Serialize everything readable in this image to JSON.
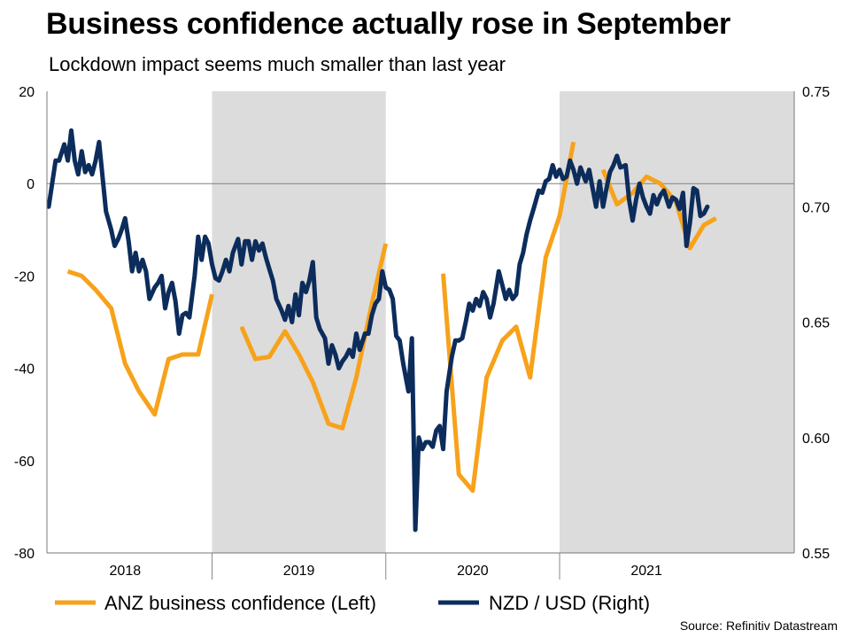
{
  "header": {
    "title": "Business confidence actually rose in September",
    "subtitle": "Lockdown impact seems much smaller than last year"
  },
  "source": "Source: Refinitiv Datastream",
  "colors": {
    "anz": "#F7A21B",
    "nzd": "#0C2C5C",
    "shade": "#DCDCDC",
    "zero_line": "#808080"
  },
  "chart_data": {
    "type": "line",
    "title": "Business confidence actually rose in September",
    "subtitle": "Lockdown impact seems much smaller than last year",
    "x_range": [
      2017.55,
      2021.85
    ],
    "x_tick_labels": [
      {
        "label": "2018",
        "at": 2018.0
      },
      {
        "label": "2019",
        "at": 2019.0
      },
      {
        "label": "2020",
        "at": 2020.0
      },
      {
        "label": "2021",
        "at": 2021.0
      }
    ],
    "shaded_years": [
      [
        2018.5,
        2019.5
      ],
      [
        2020.5,
        2021.85
      ]
    ],
    "year_separators": [
      2018.5,
      2019.5,
      2020.5
    ],
    "y_left": {
      "range": [
        -80,
        20
      ],
      "ticks": [
        20,
        0,
        -20,
        -40,
        -60,
        -80
      ],
      "tick_labels": [
        "20",
        "0",
        "-20",
        "-40",
        "-60",
        "-80"
      ]
    },
    "y_right": {
      "range": [
        0.55,
        0.75
      ],
      "ticks": [
        0.75,
        0.7,
        0.65,
        0.6,
        0.55
      ],
      "tick_labels": [
        "0.75",
        "0.70",
        "0.65",
        "0.60",
        "0.55"
      ]
    },
    "series": [
      {
        "name": "ANZ business confidence (Left)",
        "axis": "left",
        "segments": [
          [
            [
              2017.67,
              -19
            ],
            [
              2017.75,
              -20
            ],
            [
              2017.83,
              -23
            ],
            [
              2017.92,
              -27
            ],
            [
              2018.0,
              -39
            ],
            [
              2018.08,
              -45
            ],
            [
              2018.17,
              -50
            ],
            [
              2018.25,
              -38
            ],
            [
              2018.33,
              -37
            ],
            [
              2018.42,
              -37
            ],
            [
              2018.5,
              -24
            ]
          ],
          [
            [
              2018.67,
              -31
            ],
            [
              2018.75,
              -38
            ],
            [
              2018.83,
              -37.5
            ],
            [
              2018.92,
              -32
            ],
            [
              2019.0,
              -37
            ],
            [
              2019.08,
              -43
            ],
            [
              2019.17,
              -52
            ],
            [
              2019.25,
              -53
            ],
            [
              2019.33,
              -42
            ],
            [
              2019.42,
              -26
            ],
            [
              2019.5,
              -13
            ]
          ],
          [
            [
              2019.83,
              -19.5
            ],
            [
              2019.92,
              -63
            ],
            [
              2020.0,
              -66.5
            ],
            [
              2020.08,
              -42
            ],
            [
              2020.17,
              -34
            ],
            [
              2020.25,
              -31
            ],
            [
              2020.33,
              -42
            ],
            [
              2020.42,
              -16
            ],
            [
              2020.5,
              -7
            ],
            [
              2020.58,
              9
            ]
          ],
          [
            [
              2020.75,
              3
            ],
            [
              2020.83,
              -4.5
            ],
            [
              2020.92,
              -2
            ],
            [
              2021.0,
              1.5
            ],
            [
              2021.08,
              0
            ],
            [
              2021.17,
              -4
            ],
            [
              2021.25,
              -14
            ],
            [
              2021.33,
              -9
            ],
            [
              2021.4,
              -7.5
            ]
          ]
        ]
      },
      {
        "name": "NZD / USD (Right)",
        "axis": "right",
        "points": [
          [
            2017.56,
            0.7
          ],
          [
            2017.58,
            0.71
          ],
          [
            2017.6,
            0.72
          ],
          [
            2017.62,
            0.72
          ],
          [
            2017.65,
            0.727
          ],
          [
            2017.67,
            0.72
          ],
          [
            2017.69,
            0.733
          ],
          [
            2017.71,
            0.72
          ],
          [
            2017.73,
            0.714
          ],
          [
            2017.75,
            0.724
          ],
          [
            2017.77,
            0.715
          ],
          [
            2017.79,
            0.718
          ],
          [
            2017.81,
            0.714
          ],
          [
            2017.83,
            0.72
          ],
          [
            2017.85,
            0.728
          ],
          [
            2017.87,
            0.713
          ],
          [
            2017.89,
            0.698
          ],
          [
            2017.92,
            0.69
          ],
          [
            2017.94,
            0.683
          ],
          [
            2017.96,
            0.686
          ],
          [
            2017.98,
            0.69
          ],
          [
            2018.0,
            0.695
          ],
          [
            2018.02,
            0.685
          ],
          [
            2018.04,
            0.672
          ],
          [
            2018.06,
            0.68
          ],
          [
            2018.08,
            0.672
          ],
          [
            2018.1,
            0.677
          ],
          [
            2018.12,
            0.672
          ],
          [
            2018.14,
            0.66
          ],
          [
            2018.17,
            0.665
          ],
          [
            2018.19,
            0.667
          ],
          [
            2018.21,
            0.67
          ],
          [
            2018.23,
            0.656
          ],
          [
            2018.25,
            0.663
          ],
          [
            2018.27,
            0.667
          ],
          [
            2018.29,
            0.659
          ],
          [
            2018.31,
            0.645
          ],
          [
            2018.33,
            0.653
          ],
          [
            2018.35,
            0.654
          ],
          [
            2018.37,
            0.652
          ],
          [
            2018.4,
            0.67
          ],
          [
            2018.42,
            0.687
          ],
          [
            2018.44,
            0.677
          ],
          [
            2018.46,
            0.687
          ],
          [
            2018.48,
            0.684
          ],
          [
            2018.5,
            0.675
          ],
          [
            2018.52,
            0.669
          ],
          [
            2018.54,
            0.668
          ],
          [
            2018.56,
            0.672
          ],
          [
            2018.58,
            0.677
          ],
          [
            2018.6,
            0.672
          ],
          [
            2018.62,
            0.68
          ],
          [
            2018.65,
            0.686
          ],
          [
            2018.67,
            0.675
          ],
          [
            2018.69,
            0.685
          ],
          [
            2018.71,
            0.685
          ],
          [
            2018.73,
            0.677
          ],
          [
            2018.75,
            0.685
          ],
          [
            2018.77,
            0.681
          ],
          [
            2018.79,
            0.684
          ],
          [
            2018.81,
            0.678
          ],
          [
            2018.83,
            0.673
          ],
          [
            2018.85,
            0.668
          ],
          [
            2018.87,
            0.66
          ],
          [
            2018.9,
            0.655
          ],
          [
            2018.92,
            0.651
          ],
          [
            2018.94,
            0.657
          ],
          [
            2018.96,
            0.65
          ],
          [
            2018.98,
            0.662
          ],
          [
            2019.0,
            0.653
          ],
          [
            2019.02,
            0.667
          ],
          [
            2019.04,
            0.663
          ],
          [
            2019.06,
            0.668
          ],
          [
            2019.08,
            0.676
          ],
          [
            2019.1,
            0.652
          ],
          [
            2019.12,
            0.647
          ],
          [
            2019.15,
            0.643
          ],
          [
            2019.17,
            0.632
          ],
          [
            2019.19,
            0.64
          ],
          [
            2019.21,
            0.636
          ],
          [
            2019.23,
            0.63
          ],
          [
            2019.25,
            0.633
          ],
          [
            2019.27,
            0.635
          ],
          [
            2019.29,
            0.638
          ],
          [
            2019.31,
            0.635
          ],
          [
            2019.33,
            0.645
          ],
          [
            2019.35,
            0.638
          ],
          [
            2019.38,
            0.645
          ],
          [
            2019.4,
            0.645
          ],
          [
            2019.42,
            0.653
          ],
          [
            2019.44,
            0.658
          ],
          [
            2019.46,
            0.66
          ],
          [
            2019.48,
            0.672
          ],
          [
            2019.5,
            0.665
          ],
          [
            2019.52,
            0.664
          ],
          [
            2019.54,
            0.66
          ],
          [
            2019.56,
            0.644
          ],
          [
            2019.58,
            0.642
          ],
          [
            2019.6,
            0.632
          ],
          [
            2019.63,
            0.62
          ],
          [
            2019.65,
            0.643
          ],
          [
            2019.67,
            0.56
          ],
          [
            2019.69,
            0.6
          ],
          [
            2019.71,
            0.595
          ],
          [
            2019.73,
            0.598
          ],
          [
            2019.75,
            0.598
          ],
          [
            2019.77,
            0.596
          ],
          [
            2019.79,
            0.603
          ],
          [
            2019.81,
            0.605
          ],
          [
            2019.83,
            0.595
          ],
          [
            2019.85,
            0.62
          ],
          [
            2019.88,
            0.635
          ],
          [
            2019.9,
            0.642
          ],
          [
            2019.92,
            0.642
          ],
          [
            2019.94,
            0.643
          ],
          [
            2019.96,
            0.65
          ],
          [
            2019.98,
            0.658
          ],
          [
            2020.0,
            0.655
          ],
          [
            2020.02,
            0.66
          ],
          [
            2020.04,
            0.657
          ],
          [
            2020.06,
            0.663
          ],
          [
            2020.08,
            0.66
          ],
          [
            2020.1,
            0.652
          ],
          [
            2020.12,
            0.658
          ],
          [
            2020.15,
            0.672
          ],
          [
            2020.17,
            0.666
          ],
          [
            2020.19,
            0.66
          ],
          [
            2020.21,
            0.664
          ],
          [
            2020.23,
            0.66
          ],
          [
            2020.25,
            0.662
          ],
          [
            2020.27,
            0.675
          ],
          [
            2020.29,
            0.68
          ],
          [
            2020.31,
            0.688
          ],
          [
            2020.33,
            0.694
          ],
          [
            2020.35,
            0.699
          ],
          [
            2020.38,
            0.707
          ],
          [
            2020.4,
            0.706
          ],
          [
            2020.42,
            0.711
          ],
          [
            2020.44,
            0.712
          ],
          [
            2020.46,
            0.718
          ],
          [
            2020.48,
            0.713
          ],
          [
            2020.5,
            0.716
          ],
          [
            2020.52,
            0.712
          ],
          [
            2020.54,
            0.713
          ],
          [
            2020.56,
            0.72
          ],
          [
            2020.58,
            0.716
          ],
          [
            2020.6,
            0.71
          ],
          [
            2020.62,
            0.717
          ],
          [
            2020.65,
            0.711
          ],
          [
            2020.67,
            0.716
          ],
          [
            2020.69,
            0.708
          ],
          [
            2020.71,
            0.7
          ],
          [
            2020.73,
            0.711
          ],
          [
            2020.75,
            0.7
          ],
          [
            2020.77,
            0.708
          ],
          [
            2020.79,
            0.715
          ],
          [
            2020.81,
            0.718
          ],
          [
            2020.83,
            0.722
          ],
          [
            2020.85,
            0.717
          ],
          [
            2020.88,
            0.718
          ],
          [
            2020.9,
            0.703
          ],
          [
            2020.92,
            0.694
          ],
          [
            2020.94,
            0.703
          ],
          [
            2020.96,
            0.71
          ],
          [
            2020.98,
            0.704
          ],
          [
            2021.0,
            0.7
          ],
          [
            2021.02,
            0.697
          ],
          [
            2021.04,
            0.705
          ],
          [
            2021.06,
            0.701
          ],
          [
            2021.08,
            0.705
          ],
          [
            2021.1,
            0.707
          ],
          [
            2021.13,
            0.7
          ],
          [
            2021.15,
            0.704
          ],
          [
            2021.17,
            0.703
          ],
          [
            2021.19,
            0.699
          ],
          [
            2021.21,
            0.706
          ],
          [
            2021.23,
            0.683
          ],
          [
            2021.25,
            0.693
          ],
          [
            2021.27,
            0.708
          ],
          [
            2021.29,
            0.707
          ],
          [
            2021.31,
            0.696
          ],
          [
            2021.33,
            0.697
          ],
          [
            2021.35,
            0.7
          ]
        ]
      }
    ],
    "legend": {
      "position": "bottom",
      "entries": [
        "ANZ business confidence (Left)",
        "NZD / USD (Right)"
      ]
    }
  }
}
